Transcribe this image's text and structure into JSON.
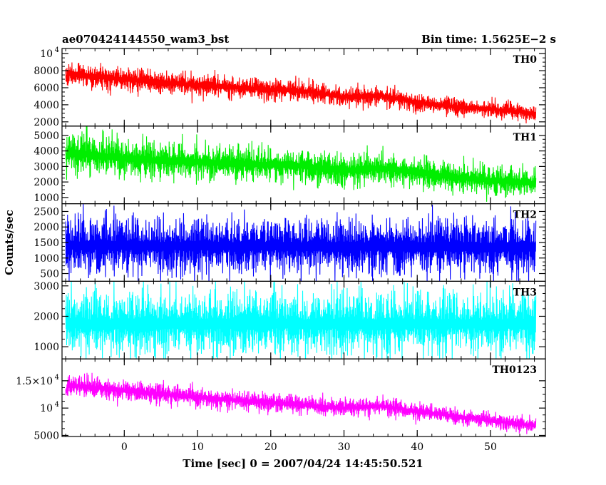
{
  "title_left": "ae070424144550_wam3_bst",
  "title_right": "Bin time: 1.5625E−2 s",
  "ylabel": "Counts/sec",
  "xlabel": "Time [sec] 0 = 2007/04/24 14:45:50.521",
  "chart_data": {
    "type": "line",
    "x_range": [
      -8.5,
      57.5
    ],
    "x_ticks": [
      {
        "value": 0,
        "label": "0"
      },
      {
        "value": 10,
        "label": "10"
      },
      {
        "value": 20,
        "label": "20"
      },
      {
        "value": 30,
        "label": "30"
      },
      {
        "value": 40,
        "label": "40"
      },
      {
        "value": 50,
        "label": "50"
      }
    ],
    "data_start": -8.0,
    "data_end": 56.2,
    "panels": [
      {
        "name": "TH0",
        "color": "#ff0000",
        "ylim": [
          1500,
          10600
        ],
        "envelope": [
          [
            -8.0,
            7000
          ],
          [
            -7.5,
            7600
          ],
          [
            0,
            7000
          ],
          [
            10,
            6300
          ],
          [
            20,
            5800
          ],
          [
            25,
            5600
          ],
          [
            30,
            4900
          ],
          [
            35,
            5100
          ],
          [
            40,
            4300
          ],
          [
            45,
            3800
          ],
          [
            50,
            3500
          ],
          [
            56,
            3000
          ]
        ],
        "halfwidth": [
          [
            -8.0,
            1400
          ],
          [
            0,
            1300
          ],
          [
            30,
            1100
          ],
          [
            56,
            900
          ]
        ],
        "yticks": [
          {
            "value": 2000,
            "label": "2000"
          },
          {
            "value": 4000,
            "label": "4000"
          },
          {
            "value": 6000,
            "label": "6000"
          },
          {
            "value": 8000,
            "label": "8000"
          },
          {
            "value": 10000,
            "label": "10",
            "exp": "4"
          }
        ]
      },
      {
        "name": "TH1",
        "color": "#00ee00",
        "ylim": [
          600,
          5600
        ],
        "envelope": [
          [
            -8.0,
            3600
          ],
          [
            -7.5,
            3900
          ],
          [
            0,
            3500
          ],
          [
            10,
            3300
          ],
          [
            20,
            3100
          ],
          [
            25,
            3000
          ],
          [
            30,
            2700
          ],
          [
            35,
            2900
          ],
          [
            40,
            2600
          ],
          [
            45,
            2300
          ],
          [
            50,
            2100
          ],
          [
            56,
            1900
          ]
        ],
        "halfwidth": [
          [
            -8.0,
            1200
          ],
          [
            0,
            1100
          ],
          [
            30,
            950
          ],
          [
            56,
            800
          ]
        ],
        "yticks": [
          {
            "value": 1000,
            "label": "1000"
          },
          {
            "value": 2000,
            "label": "2000"
          },
          {
            "value": 3000,
            "label": "3000"
          },
          {
            "value": 4000,
            "label": "4000"
          },
          {
            "value": 5000,
            "label": "5000"
          }
        ]
      },
      {
        "name": "TH2",
        "color": "#0000ff",
        "ylim": [
          250,
          2750
        ],
        "envelope": [
          [
            -8.0,
            1400
          ],
          [
            56,
            1350
          ]
        ],
        "halfwidth": [
          [
            -8.0,
            850
          ],
          [
            56,
            850
          ]
        ],
        "yticks": [
          {
            "value": 500,
            "label": "500"
          },
          {
            "value": 1000,
            "label": "1000"
          },
          {
            "value": 1500,
            "label": "1500"
          },
          {
            "value": 2000,
            "label": "2000"
          },
          {
            "value": 2500,
            "label": "2500"
          }
        ]
      },
      {
        "name": "TH3",
        "color": "#00ffff",
        "ylim": [
          600,
          3150
        ],
        "envelope": [
          [
            -8.0,
            1750
          ],
          [
            56,
            1750
          ]
        ],
        "halfwidth": [
          [
            -8.0,
            950
          ],
          [
            56,
            950
          ]
        ],
        "yticks": [
          {
            "value": 1000,
            "label": "1000"
          },
          {
            "value": 2000,
            "label": "2000"
          },
          {
            "value": 3000,
            "label": "3000"
          }
        ]
      },
      {
        "name": "TH0123",
        "color": "#ff00ff",
        "ylim": [
          4800,
          19000
        ],
        "envelope": [
          [
            -8.0,
            13000
          ],
          [
            -7.5,
            14200
          ],
          [
            0,
            13200
          ],
          [
            10,
            12000
          ],
          [
            20,
            11000
          ],
          [
            30,
            10000
          ],
          [
            35,
            10400
          ],
          [
            40,
            9400
          ],
          [
            45,
            8600
          ],
          [
            50,
            7700
          ],
          [
            56,
            6800
          ]
        ],
        "halfwidth": [
          [
            -8.0,
            1900
          ],
          [
            0,
            1800
          ],
          [
            30,
            1500
          ],
          [
            56,
            1300
          ]
        ],
        "yticks": [
          {
            "value": 5000,
            "label": "5000"
          },
          {
            "value": 10000,
            "label": "10",
            "exp": "4"
          },
          {
            "value": 15000,
            "label": "1.5×10",
            "exp": "4"
          }
        ]
      }
    ]
  }
}
